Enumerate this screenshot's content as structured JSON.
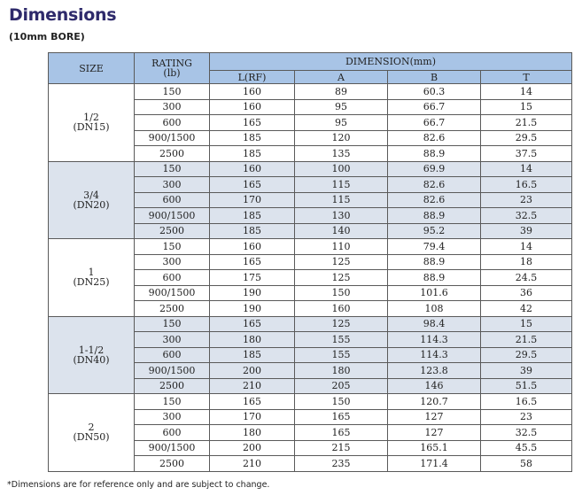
{
  "title": "Dimensions",
  "subtitle": "(10mm BORE)",
  "header": {
    "size": "SIZE",
    "rating_line1": "RATING",
    "rating_line2": "(lb)",
    "dimension": "DIMENSION(mm)",
    "cols": [
      "L(RF)",
      "A",
      "B",
      "T"
    ]
  },
  "groups": [
    {
      "size": "1/2",
      "dn": "(DN15)",
      "shaded": false,
      "rows": [
        {
          "rating": "150",
          "l": "160",
          "a": "89",
          "b": "60.3",
          "t": "14"
        },
        {
          "rating": "300",
          "l": "160",
          "a": "95",
          "b": "66.7",
          "t": "15"
        },
        {
          "rating": "600",
          "l": "165",
          "a": "95",
          "b": "66.7",
          "t": "21.5"
        },
        {
          "rating": "900/1500",
          "l": "185",
          "a": "120",
          "b": "82.6",
          "t": "29.5"
        },
        {
          "rating": "2500",
          "l": "185",
          "a": "135",
          "b": "88.9",
          "t": "37.5"
        }
      ]
    },
    {
      "size": "3/4",
      "dn": "(DN20)",
      "shaded": true,
      "rows": [
        {
          "rating": "150",
          "l": "160",
          "a": "100",
          "b": "69.9",
          "t": "14"
        },
        {
          "rating": "300",
          "l": "165",
          "a": "115",
          "b": "82.6",
          "t": "16.5"
        },
        {
          "rating": "600",
          "l": "170",
          "a": "115",
          "b": "82.6",
          "t": "23"
        },
        {
          "rating": "900/1500",
          "l": "185",
          "a": "130",
          "b": "88.9",
          "t": "32.5"
        },
        {
          "rating": "2500",
          "l": "185",
          "a": "140",
          "b": "95.2",
          "t": "39"
        }
      ]
    },
    {
      "size": "1",
      "dn": "(DN25)",
      "shaded": false,
      "rows": [
        {
          "rating": "150",
          "l": "160",
          "a": "110",
          "b": "79.4",
          "t": "14"
        },
        {
          "rating": "300",
          "l": "165",
          "a": "125",
          "b": "88.9",
          "t": "18"
        },
        {
          "rating": "600",
          "l": "175",
          "a": "125",
          "b": "88.9",
          "t": "24.5"
        },
        {
          "rating": "900/1500",
          "l": "190",
          "a": "150",
          "b": "101.6",
          "t": "36"
        },
        {
          "rating": "2500",
          "l": "190",
          "a": "160",
          "b": "108",
          "t": "42"
        }
      ]
    },
    {
      "size": "1-1/2",
      "dn": "(DN40)",
      "shaded": true,
      "rows": [
        {
          "rating": "150",
          "l": "165",
          "a": "125",
          "b": "98.4",
          "t": "15"
        },
        {
          "rating": "300",
          "l": "180",
          "a": "155",
          "b": "114.3",
          "t": "21.5"
        },
        {
          "rating": "600",
          "l": "185",
          "a": "155",
          "b": "114.3",
          "t": "29.5"
        },
        {
          "rating": "900/1500",
          "l": "200",
          "a": "180",
          "b": "123.8",
          "t": "39"
        },
        {
          "rating": "2500",
          "l": "210",
          "a": "205",
          "b": "146",
          "t": "51.5"
        }
      ]
    },
    {
      "size": "2",
      "dn": "(DN50)",
      "shaded": false,
      "rows": [
        {
          "rating": "150",
          "l": "165",
          "a": "150",
          "b": "120.7",
          "t": "16.5"
        },
        {
          "rating": "300",
          "l": "170",
          "a": "165",
          "b": "127",
          "t": "23"
        },
        {
          "rating": "600",
          "l": "180",
          "a": "165",
          "b": "127",
          "t": "32.5"
        },
        {
          "rating": "900/1500",
          "l": "200",
          "a": "215",
          "b": "165.1",
          "t": "45.5"
        },
        {
          "rating": "2500",
          "l": "210",
          "a": "235",
          "b": "171.4",
          "t": "58"
        }
      ]
    }
  ],
  "footnote": "*Dimensions are for reference only and are subject to change."
}
